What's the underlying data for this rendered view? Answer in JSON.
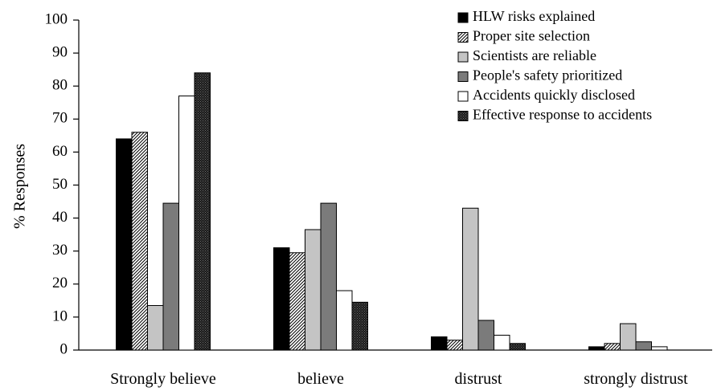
{
  "chart_data": {
    "type": "bar",
    "title": "",
    "xlabel": "",
    "ylabel": "% Responses",
    "ylim": [
      0,
      100
    ],
    "yticks": [
      0,
      10,
      20,
      30,
      40,
      50,
      60,
      70,
      80,
      90,
      100
    ],
    "grid": false,
    "legend_position": "top-right",
    "categories": [
      "Strongly believe",
      "believe",
      "distrust",
      "strongly distrust"
    ],
    "series": [
      {
        "name": "HLW risks explained",
        "fill": "solid-black",
        "values": [
          64,
          31,
          4,
          1
        ]
      },
      {
        "name": "Proper site selection",
        "fill": "diagonal-hatch",
        "values": [
          66,
          29.5,
          3,
          2
        ]
      },
      {
        "name": "Scientists are reliable",
        "fill": "light-gray",
        "values": [
          13.5,
          36.5,
          43,
          8
        ]
      },
      {
        "name": "People's safety prioritized",
        "fill": "dark-gray",
        "values": [
          44.5,
          44.5,
          9,
          2.5
        ]
      },
      {
        "name": "Accidents quickly disclosed",
        "fill": "white",
        "values": [
          77,
          18,
          4.5,
          1
        ]
      },
      {
        "name": "Effective response to accidents",
        "fill": "dense-dark",
        "values": [
          84,
          14.5,
          2,
          0
        ]
      }
    ]
  }
}
